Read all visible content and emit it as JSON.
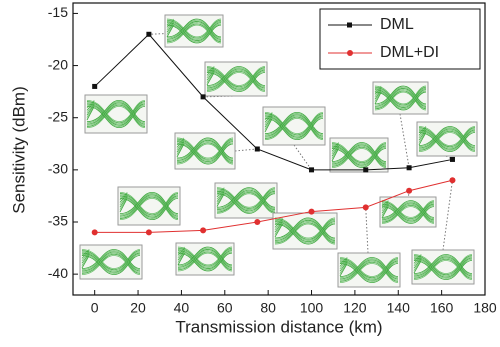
{
  "chart_data": {
    "type": "line",
    "x_label": "Transmission distance (km)",
    "y_label": "Sensitivity (dBm)",
    "xlim": [
      -10,
      180
    ],
    "xticks": [
      0,
      20,
      40,
      60,
      80,
      100,
      120,
      140,
      160,
      180
    ],
    "ylim": [
      -42,
      -14
    ],
    "yticks": [
      -40,
      -35,
      -30,
      -25,
      -20,
      -15
    ],
    "legend": "top-right",
    "series": [
      {
        "name": "DML",
        "color": "#111111",
        "marker": "square",
        "x": [
          0,
          25,
          50,
          75,
          100,
          125,
          145,
          165
        ],
        "values": [
          -22,
          -17,
          -23,
          -28,
          -30,
          -30,
          -29.8,
          -29
        ]
      },
      {
        "name": "DML+DI",
        "color": "#e03030",
        "marker": "circle",
        "x": [
          0,
          25,
          50,
          75,
          100,
          125,
          145,
          165
        ],
        "values": [
          -36,
          -36,
          -35.8,
          -35,
          -34,
          -33.6,
          -32,
          -31
        ]
      }
    ]
  }
}
